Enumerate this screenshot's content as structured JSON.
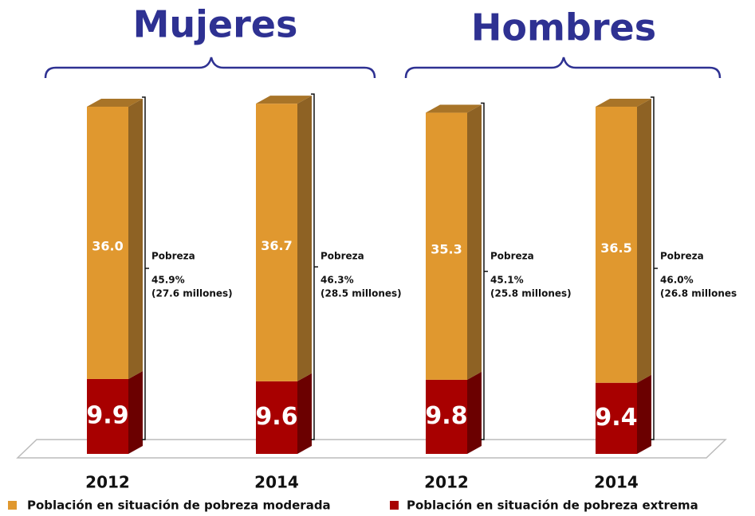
{
  "chart_data": {
    "type": "stacked-bar-3d",
    "groups": [
      "Mujeres",
      "Hombres"
    ],
    "categories": [
      "2012",
      "2014",
      "2012",
      "2014"
    ],
    "series": [
      {
        "name": "Población en situación de pobreza  moderada",
        "color": "#e0982f",
        "values": [
          36.0,
          36.7,
          35.3,
          36.5
        ],
        "value_labels": [
          "36.0",
          "36.7",
          "35.3",
          "36.5"
        ]
      },
      {
        "name": "Población en situación de pobreza extrema",
        "color": "#a80000",
        "values": [
          9.9,
          9.6,
          9.8,
          9.4
        ]
      }
    ],
    "annotations": [
      {
        "label": "Pobreza",
        "percent": "45.9%",
        "detail": "(27.6 millones)"
      },
      {
        "label": "Pobreza",
        "percent": "46.3%",
        "detail": "(28.5 millones)"
      },
      {
        "label": "Pobreza",
        "percent": "45.1%",
        "detail": "(25.8 millones)"
      },
      {
        "label": "Pobreza",
        "percent": "46.0%",
        "detail": "(26.8 millones"
      }
    ]
  }
}
